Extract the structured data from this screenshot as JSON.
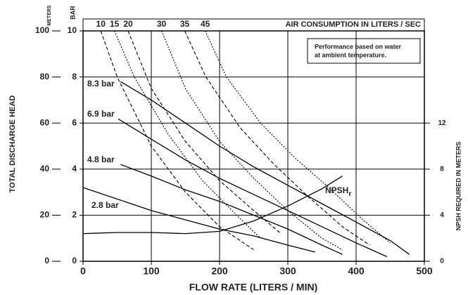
{
  "chart_data": {
    "type": "line",
    "y_label": "TOTAL DISCHARGE HEAD",
    "y_unit_label": "METERS",
    "bar_label": "BAR",
    "x_label": "FLOW RATE (LITERS / MIN)",
    "y2_label": "NPSH REQUIRED IN METERS",
    "top_label": "AIR CONSUMPTION IN LITERS / SEC",
    "note": [
      "Performance based on water",
      "at ambient temperature."
    ],
    "xlim": [
      0,
      500
    ],
    "xticks": [
      0,
      100,
      200,
      300,
      400,
      500
    ],
    "ylim": [
      0,
      100
    ],
    "yticks": [
      0,
      20,
      40,
      60,
      80,
      100
    ],
    "bar_lim": [
      0,
      10
    ],
    "bar_ticks": [
      0,
      2,
      4,
      6,
      8,
      10
    ],
    "y2lim": [
      0,
      20
    ],
    "y2ticks": [
      0,
      4,
      8,
      12
    ],
    "grid": true,
    "series": [
      {
        "name": "8.3 bar",
        "color": "#000000",
        "x": [
          55,
          100,
          150,
          200,
          250,
          300,
          350,
          400,
          450,
          478
        ],
        "values": [
          78,
          70,
          60,
          50,
          41,
          33,
          25,
          17,
          9,
          3
        ]
      },
      {
        "name": "6.9 bar",
        "color": "#000000",
        "x": [
          45,
          100,
          150,
          200,
          250,
          300,
          350,
          400,
          445
        ],
        "values": [
          63,
          53,
          44,
          36,
          29,
          22,
          15,
          8,
          2
        ]
      },
      {
        "name": "4.8 bar",
        "color": "#000000",
        "x": [
          55,
          100,
          150,
          200,
          250,
          300,
          350,
          380
        ],
        "values": [
          42,
          37,
          31,
          26,
          20,
          14,
          7,
          3
        ]
      },
      {
        "name": "2.8 bar",
        "color": "#000000",
        "x": [
          0,
          50,
          100,
          150,
          200,
          250,
          300,
          340
        ],
        "values": [
          32,
          27,
          22,
          18,
          14,
          11,
          7,
          4
        ]
      },
      {
        "name": "NPSH",
        "subscript": "r",
        "color": "#000000",
        "axis": "y2",
        "x": [
          0,
          50,
          100,
          150,
          200,
          250,
          300,
          350,
          380
        ],
        "values": [
          2.4,
          2.5,
          2.5,
          2.4,
          2.6,
          3.5,
          4.8,
          6.3,
          7.4
        ]
      }
    ],
    "air_series": [
      {
        "name": "10",
        "color": "#000000",
        "x": [
          26,
          50,
          100,
          150,
          200,
          250
        ],
        "values": [
          100,
          80,
          50,
          30,
          15,
          5
        ]
      },
      {
        "name": "15",
        "color": "#000000",
        "x": [
          46,
          75,
          125,
          175,
          225,
          260
        ],
        "values": [
          100,
          80,
          55,
          35,
          20,
          10
        ]
      },
      {
        "name": "20",
        "color": "#000000",
        "x": [
          66,
          100,
          150,
          200,
          250,
          290
        ],
        "values": [
          100,
          75,
          52,
          35,
          22,
          12
        ]
      },
      {
        "name": "30",
        "color": "#000000",
        "x": [
          115,
          150,
          200,
          250,
          300,
          350,
          380
        ],
        "values": [
          100,
          75,
          52,
          36,
          22,
          10,
          5
        ]
      },
      {
        "name": "35",
        "color": "#000000",
        "x": [
          149,
          180,
          230,
          280,
          330,
          380,
          420
        ],
        "values": [
          100,
          80,
          58,
          42,
          28,
          15,
          7
        ]
      },
      {
        "name": "45",
        "color": "#000000",
        "x": [
          179,
          210,
          260,
          310,
          360,
          410,
          450
        ],
        "values": [
          100,
          80,
          60,
          45,
          32,
          18,
          8
        ]
      }
    ]
  }
}
